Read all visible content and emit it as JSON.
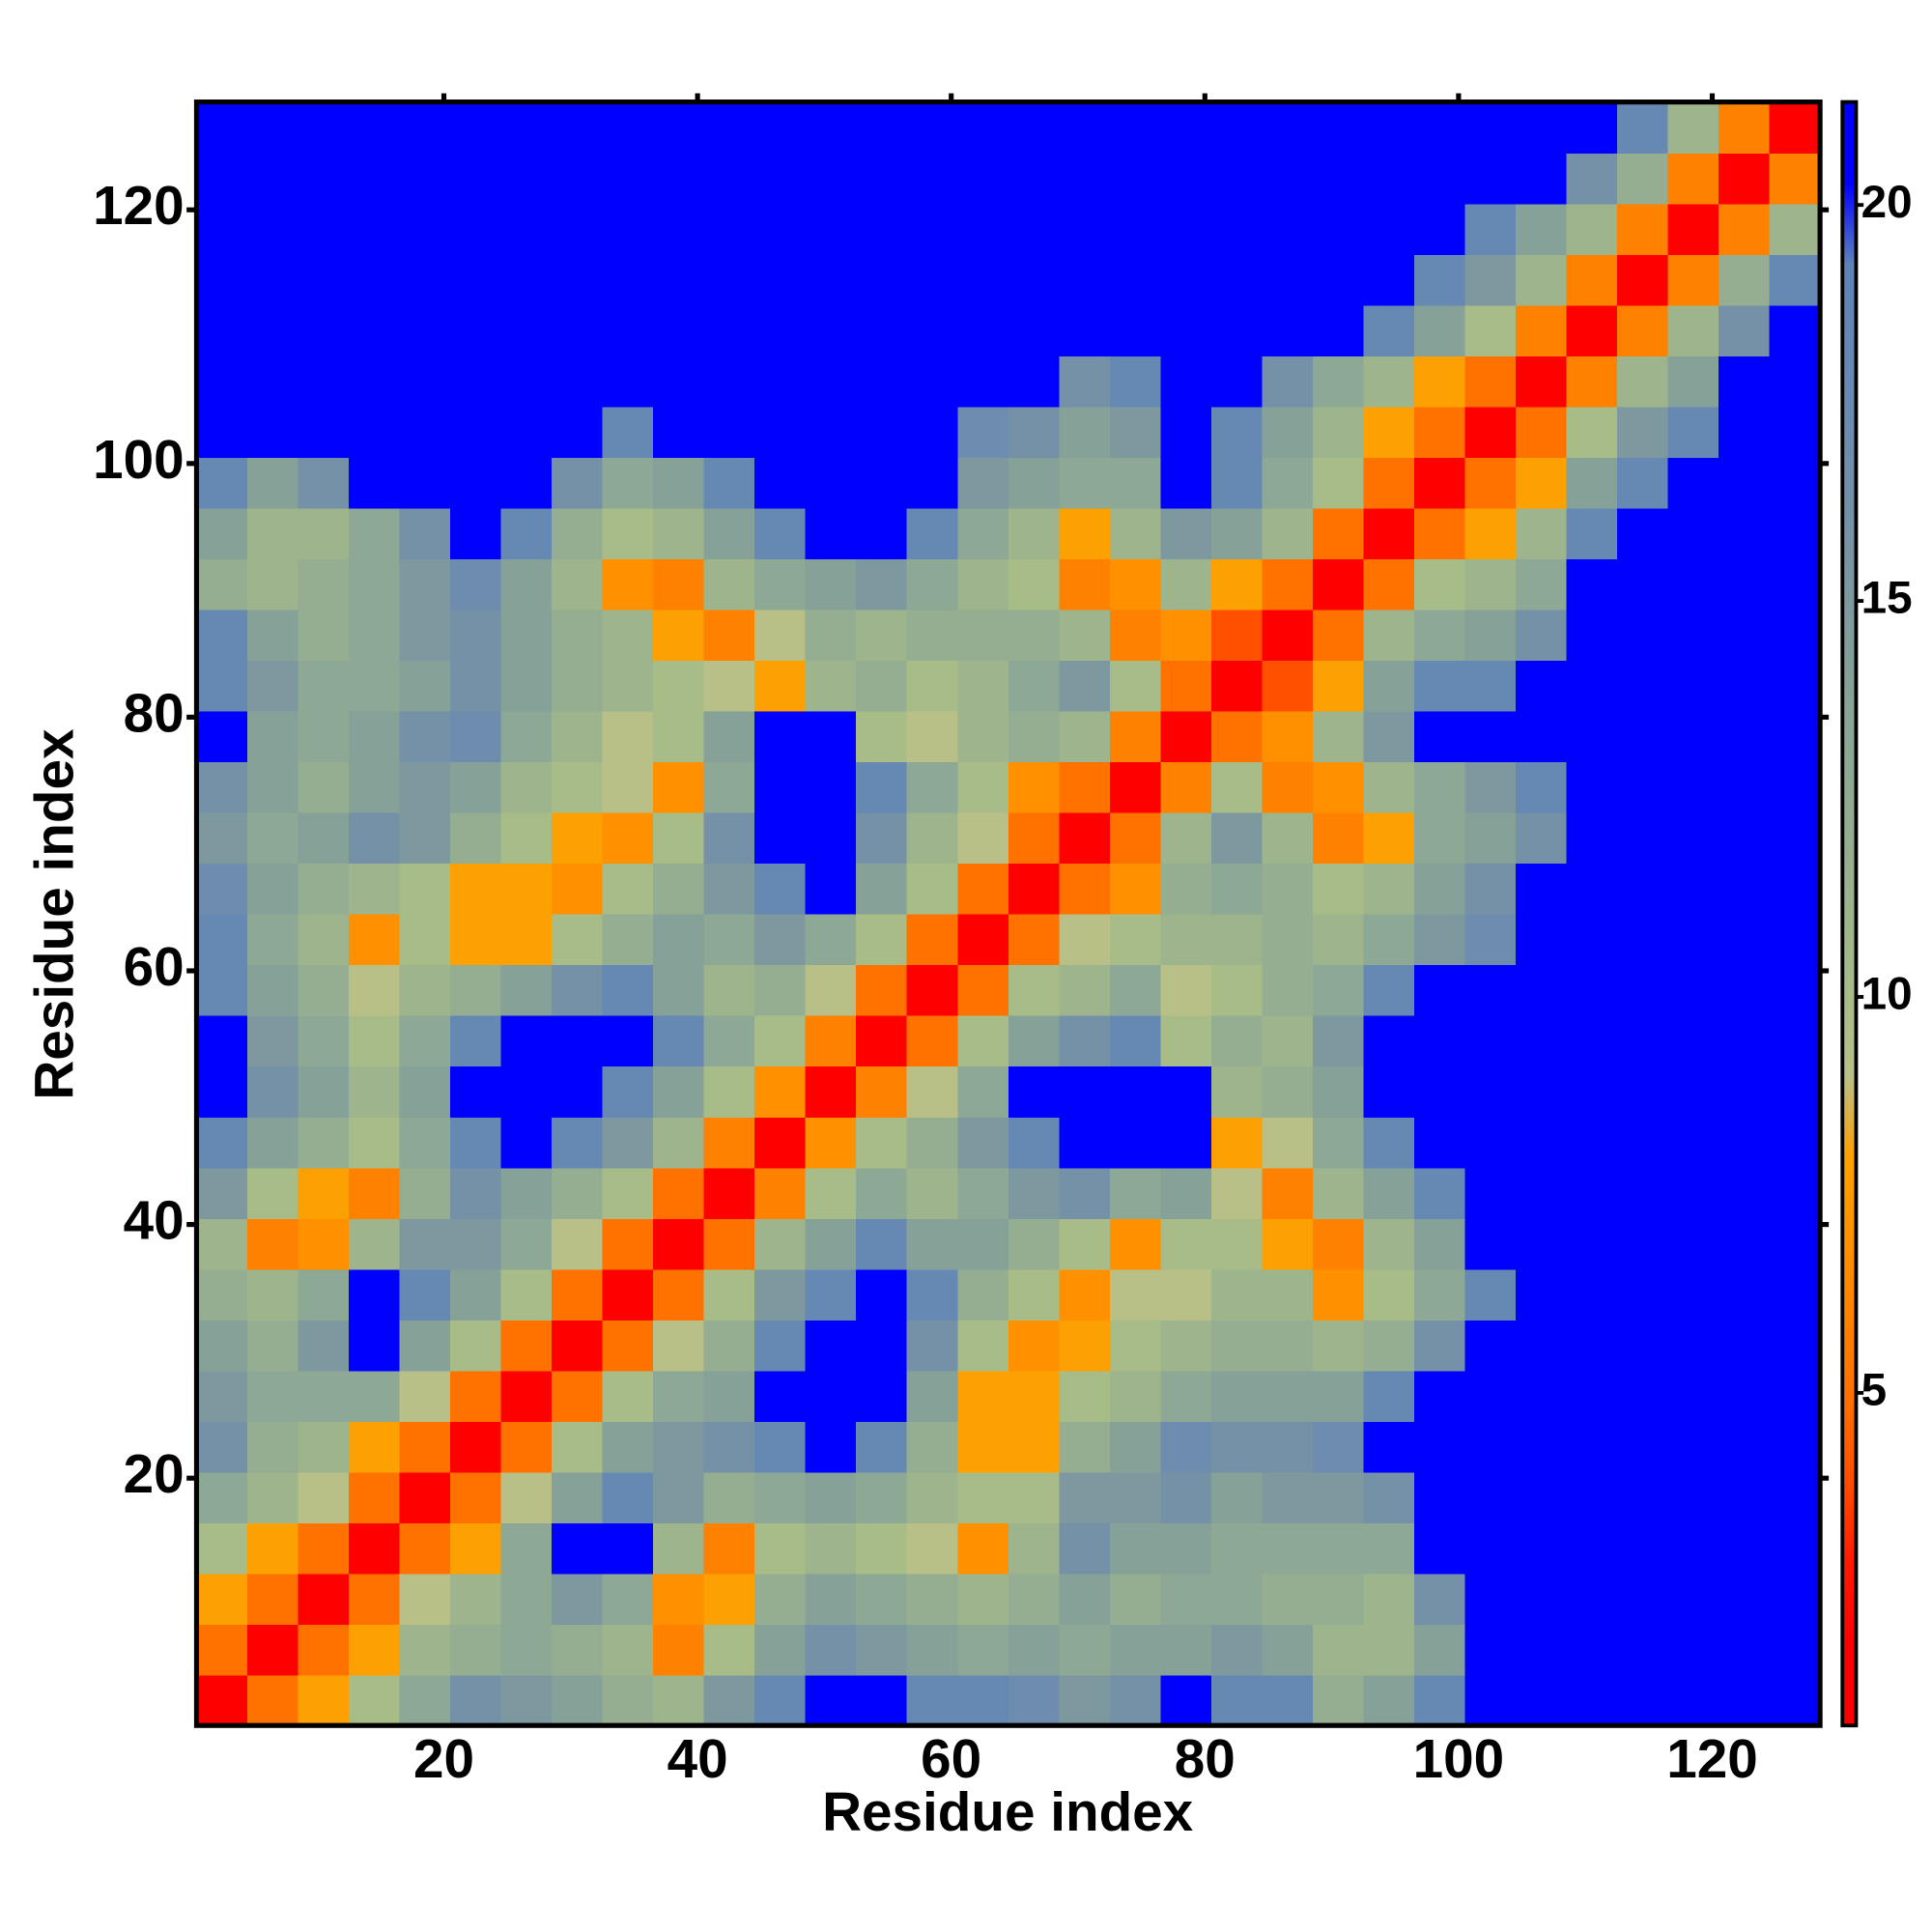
{
  "chart_data": {
    "type": "heatmap",
    "xlabel": "Residue index",
    "ylabel": "Residue index",
    "xlim": [
      0.5,
      128.5
    ],
    "ylim": [
      0.5,
      128.5
    ],
    "xticks": [
      20,
      40,
      60,
      80,
      100,
      120
    ],
    "yticks": [
      20,
      40,
      60,
      80,
      100,
      120
    ],
    "colorbar": {
      "clim": [
        0.8,
        21.3
      ],
      "ticks": [
        5,
        10,
        15,
        20
      ],
      "colormap": [
        "#ff0000",
        "#ff0000",
        "#ff1a00",
        "#ff4d00",
        "#ff7000",
        "#ff8000",
        "#ff9000",
        "#ffa000",
        "#b8c088",
        "#a8bc88",
        "#9cb48c",
        "#94ac90",
        "#8ca894",
        "#84a098",
        "#7c98a0",
        "#7490a8",
        "#6c8cb0",
        "#6488b4",
        "#5c84b8",
        "#0000ff",
        "#0000ff"
      ]
    },
    "x": [
      2.5,
      6.5,
      10.5,
      14.5,
      18.5,
      22.5,
      26.5,
      30.5,
      34.5,
      38.5,
      42.5,
      46.5,
      50.5,
      54.5,
      58.5,
      62.5,
      66.5,
      70.5,
      74.5,
      78.5,
      82.5,
      86.5,
      90.5,
      94.5,
      98.5,
      102.5,
      106.5,
      110.5,
      114.5,
      118.5,
      122.5,
      126.5
    ],
    "y": [
      2.5,
      6.5,
      10.5,
      14.5,
      18.5,
      22.5,
      26.5,
      30.5,
      34.5,
      38.5,
      42.5,
      46.5,
      50.5,
      54.5,
      58.5,
      62.5,
      66.5,
      70.5,
      74.5,
      78.5,
      82.5,
      86.5,
      90.5,
      94.5,
      98.5,
      102.5,
      106.5,
      110.5,
      114.5,
      118.5,
      122.5,
      126.5
    ],
    "values": [
      [
        1.5,
        5,
        8,
        10,
        13,
        16,
        15,
        14,
        12,
        11,
        15,
        18,
        21,
        21,
        18,
        18,
        17,
        15,
        16,
        21,
        18,
        18,
        12,
        14,
        18,
        21,
        21,
        21,
        21,
        21,
        21,
        21
      ],
      [
        5,
        1.5,
        5,
        8,
        11,
        12,
        13,
        12,
        11,
        6,
        10,
        14,
        16,
        15,
        14,
        13,
        14,
        13,
        14,
        14,
        15,
        14,
        11,
        11,
        14,
        21,
        21,
        21,
        21,
        21,
        21,
        21
      ],
      [
        8,
        5,
        1.5,
        5,
        9,
        11,
        13,
        15,
        13,
        7,
        8,
        12,
        14,
        13,
        12,
        11,
        12,
        14,
        12,
        13,
        13,
        12,
        12,
        11,
        16,
        21,
        21,
        21,
        21,
        21,
        21,
        21
      ],
      [
        10,
        8,
        5,
        1.5,
        5,
        8,
        13,
        21,
        21,
        11,
        6,
        10,
        11,
        10,
        9,
        7,
        11,
        16,
        14,
        14,
        13,
        13,
        13,
        13,
        21,
        21,
        21,
        21,
        21,
        21,
        21,
        21
      ],
      [
        13,
        11,
        9,
        5,
        1.5,
        5,
        9,
        14,
        18,
        15,
        12,
        13,
        14,
        13,
        11,
        10,
        10,
        15,
        15,
        16,
        14,
        15,
        15,
        16,
        21,
        21,
        21,
        21,
        21,
        21,
        21,
        21
      ],
      [
        16,
        12,
        11,
        8,
        5,
        1.5,
        5,
        10,
        14,
        15,
        16,
        18,
        21,
        18,
        12,
        8,
        8,
        12,
        14,
        17,
        16,
        16,
        17,
        21,
        21,
        21,
        21,
        21,
        21,
        21,
        21,
        21
      ],
      [
        15,
        13,
        13,
        13,
        9,
        5,
        1.5,
        5,
        10,
        13,
        14,
        21,
        21,
        21,
        14,
        8,
        8,
        10,
        11,
        13,
        14,
        14,
        14,
        18,
        21,
        21,
        21,
        21,
        21,
        21,
        21,
        21
      ],
      [
        14,
        12,
        15,
        21,
        14,
        10,
        5,
        1.5,
        5,
        9,
        12,
        18,
        21,
        21,
        16,
        10,
        7,
        8,
        10,
        11,
        12,
        12,
        11,
        12,
        16,
        21,
        21,
        21,
        21,
        21,
        21,
        21
      ],
      [
        12,
        11,
        13,
        21,
        18,
        14,
        10,
        5,
        1.5,
        5,
        10,
        15,
        18,
        21,
        18,
        12,
        10,
        7,
        9,
        9,
        11,
        11,
        7,
        10,
        13,
        18,
        21,
        21,
        21,
        21,
        21,
        21
      ],
      [
        11,
        6,
        7,
        11,
        15,
        15,
        13,
        9,
        5,
        1.5,
        5,
        11,
        14,
        18,
        14,
        14,
        12,
        10,
        7,
        10,
        10,
        8,
        6,
        11,
        14,
        21,
        21,
        21,
        21,
        21,
        21,
        21
      ],
      [
        15,
        10,
        8,
        6,
        12,
        16,
        14,
        12,
        10,
        5,
        1.5,
        6,
        10,
        13,
        11,
        13,
        15,
        16,
        13,
        14,
        9,
        6,
        11,
        14,
        18,
        21,
        21,
        21,
        21,
        21,
        21,
        21
      ],
      [
        18,
        14,
        12,
        10,
        13,
        18,
        21,
        18,
        15,
        11,
        6,
        1.5,
        7,
        10,
        12,
        15,
        18,
        21,
        21,
        21,
        8,
        9,
        13,
        18,
        21,
        21,
        21,
        21,
        21,
        21,
        21,
        21
      ],
      [
        21,
        16,
        14,
        11,
        14,
        21,
        21,
        21,
        18,
        14,
        10,
        7,
        1.5,
        6,
        9,
        13,
        21,
        21,
        21,
        21,
        11,
        12,
        14,
        21,
        21,
        21,
        21,
        21,
        21,
        21,
        21,
        21
      ],
      [
        21,
        15,
        13,
        10,
        13,
        18,
        21,
        21,
        21,
        18,
        13,
        10,
        6,
        1.5,
        5,
        10,
        14,
        16,
        18,
        10,
        12,
        11,
        15,
        21,
        21,
        21,
        21,
        21,
        21,
        21,
        21,
        21
      ],
      [
        18,
        14,
        12,
        9,
        11,
        12,
        14,
        16,
        18,
        14,
        11,
        12,
        9,
        5,
        1.5,
        5,
        10,
        11,
        13,
        9,
        10,
        12,
        13,
        18,
        21,
        21,
        21,
        21,
        21,
        21,
        21,
        21
      ],
      [
        18,
        13,
        11,
        7,
        10,
        8,
        8,
        10,
        12,
        14,
        13,
        15,
        13,
        10,
        5,
        1.5,
        5,
        9,
        10,
        11,
        11,
        12,
        11,
        13,
        15,
        17,
        21,
        21,
        21,
        21,
        21,
        21
      ],
      [
        17,
        14,
        12,
        11,
        10,
        8,
        8,
        7,
        10,
        12,
        15,
        18,
        21,
        14,
        10,
        5,
        1.5,
        5,
        7,
        12,
        13,
        12,
        10,
        11,
        14,
        16,
        21,
        21,
        21,
        21,
        21,
        21
      ],
      [
        15,
        13,
        14,
        16,
        15,
        12,
        10,
        8,
        7,
        10,
        16,
        21,
        21,
        16,
        11,
        9,
        5,
        1.5,
        5,
        11,
        15,
        11,
        6,
        8,
        13,
        14,
        16,
        21,
        21,
        21,
        21,
        21
      ],
      [
        16,
        14,
        12,
        14,
        15,
        14,
        11,
        10,
        9,
        7,
        13,
        21,
        21,
        18,
        13,
        10,
        7,
        5,
        1.5,
        6,
        10,
        6,
        7,
        11,
        13,
        15,
        18,
        21,
        21,
        21,
        21,
        21
      ],
      [
        21,
        14,
        13,
        14,
        16,
        17,
        13,
        11,
        9,
        10,
        14,
        21,
        21,
        10,
        9,
        11,
        12,
        11,
        6,
        1.5,
        5,
        7,
        11,
        15,
        21,
        21,
        21,
        21,
        21,
        21,
        21,
        21
      ],
      [
        18,
        15,
        13,
        13,
        14,
        16,
        14,
        12,
        11,
        10,
        9,
        8,
        11,
        12,
        10,
        11,
        13,
        15,
        10,
        5,
        1.5,
        4,
        8,
        14,
        18,
        18,
        21,
        21,
        21,
        21,
        21,
        21
      ],
      [
        18,
        14,
        12,
        13,
        15,
        16,
        14,
        12,
        11,
        8,
        6,
        9,
        12,
        11,
        12,
        12,
        12,
        11,
        6,
        7,
        4,
        1.5,
        5,
        11,
        13,
        14,
        16,
        21,
        21,
        21,
        21,
        21
      ],
      [
        12,
        11,
        12,
        13,
        15,
        17,
        14,
        11,
        7,
        6,
        11,
        13,
        14,
        15,
        13,
        11,
        10,
        6,
        7,
        11,
        8,
        5,
        1.5,
        5,
        10,
        11,
        13,
        21,
        21,
        21,
        21,
        21
      ],
      [
        14,
        11,
        11,
        13,
        16,
        21,
        18,
        12,
        10,
        11,
        14,
        18,
        21,
        21,
        18,
        13,
        11,
        8,
        11,
        15,
        14,
        11,
        5,
        1.5,
        5,
        8,
        11,
        18,
        21,
        21,
        21,
        21
      ],
      [
        18,
        14,
        16,
        21,
        21,
        21,
        21,
        16,
        13,
        14,
        18,
        21,
        21,
        21,
        21,
        15,
        14,
        13,
        13,
        21,
        18,
        13,
        10,
        5,
        1.5,
        5,
        8,
        14,
        18,
        21,
        21,
        21
      ],
      [
        21,
        21,
        21,
        21,
        21,
        21,
        21,
        21,
        18,
        21,
        21,
        21,
        21,
        21,
        21,
        17,
        16,
        14,
        15,
        21,
        18,
        14,
        11,
        8,
        5,
        1.5,
        5,
        10,
        15,
        18,
        21,
        21
      ],
      [
        21,
        21,
        21,
        21,
        21,
        21,
        21,
        21,
        21,
        21,
        21,
        21,
        21,
        21,
        21,
        21,
        21,
        16,
        18,
        21,
        21,
        16,
        13,
        11,
        8,
        5,
        1.5,
        6,
        11,
        14,
        21,
        21
      ],
      [
        21,
        21,
        21,
        21,
        21,
        21,
        21,
        21,
        21,
        21,
        21,
        21,
        21,
        21,
        21,
        21,
        21,
        21,
        21,
        21,
        21,
        21,
        21,
        18,
        14,
        10,
        6,
        1.5,
        6,
        11,
        16,
        21
      ],
      [
        21,
        21,
        21,
        21,
        21,
        21,
        21,
        21,
        21,
        21,
        21,
        21,
        21,
        21,
        21,
        21,
        21,
        21,
        21,
        21,
        21,
        21,
        21,
        21,
        18,
        15,
        11,
        6,
        1.5,
        6,
        12,
        18
      ],
      [
        21,
        21,
        21,
        21,
        21,
        21,
        21,
        21,
        21,
        21,
        21,
        21,
        21,
        21,
        21,
        21,
        21,
        21,
        21,
        21,
        21,
        21,
        21,
        21,
        21,
        18,
        14,
        11,
        6,
        1.5,
        6,
        11
      ],
      [
        21,
        21,
        21,
        21,
        21,
        21,
        21,
        21,
        21,
        21,
        21,
        21,
        21,
        21,
        21,
        21,
        21,
        21,
        21,
        21,
        21,
        21,
        21,
        21,
        21,
        21,
        21,
        16,
        12,
        6,
        1.5,
        6
      ],
      [
        21,
        21,
        21,
        21,
        21,
        21,
        21,
        21,
        21,
        21,
        21,
        21,
        21,
        21,
        21,
        21,
        21,
        21,
        21,
        21,
        21,
        21,
        21,
        21,
        21,
        21,
        21,
        21,
        18,
        11,
        6,
        1.5
      ]
    ]
  }
}
